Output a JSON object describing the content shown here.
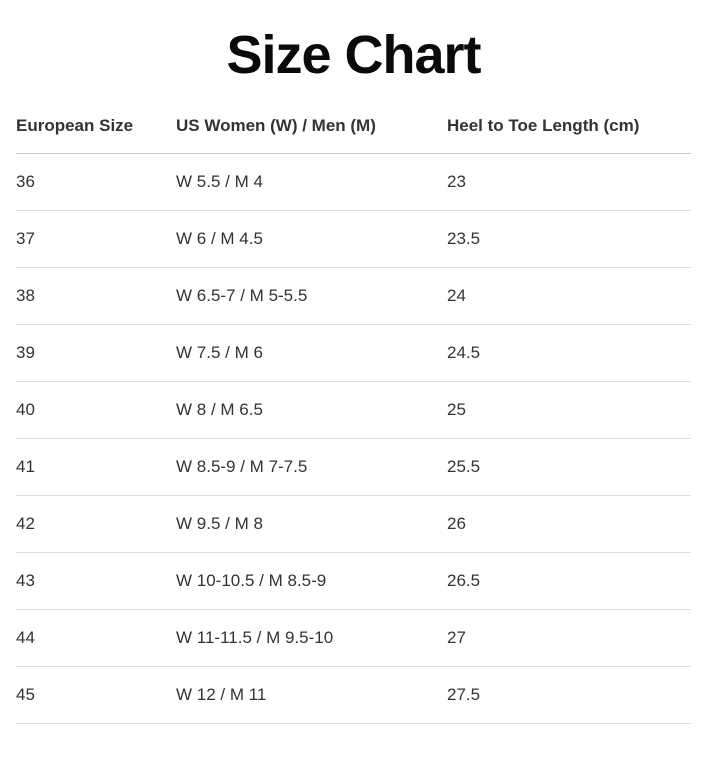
{
  "page": {
    "title": "Size Chart"
  },
  "table": {
    "columns": [
      "European Size",
      "US Women (W) / Men (M)",
      "Heel to Toe Length (cm)"
    ],
    "rows": [
      [
        "36",
        "W 5.5 / M 4",
        "23"
      ],
      [
        "37",
        "W 6 / M 4.5",
        "23.5"
      ],
      [
        "38",
        "W 6.5-7 / M 5-5.5",
        "24"
      ],
      [
        "39",
        "W 7.5 / M 6",
        "24.5"
      ],
      [
        "40",
        "W 8 / M 6.5",
        "25"
      ],
      [
        "41",
        "W 8.5-9 / M 7-7.5",
        "25.5"
      ],
      [
        "42",
        "W 9.5 / M 8",
        "26"
      ],
      [
        "43",
        "W 10-10.5 / M 8.5-9",
        "26.5"
      ],
      [
        "44",
        "W 11-11.5 / M 9.5-10",
        "27"
      ],
      [
        "45",
        "W 12 / M 11",
        "27.5"
      ]
    ]
  },
  "chart_data": {
    "type": "table",
    "title": "Size Chart",
    "columns": [
      "European Size",
      "US Women (W) / Men (M)",
      "Heel to Toe Length (cm)"
    ],
    "rows": [
      {
        "european_size": "36",
        "us_size": "W 5.5 / M 4",
        "heel_to_toe_cm": "23"
      },
      {
        "european_size": "37",
        "us_size": "W 6 / M 4.5",
        "heel_to_toe_cm": "23.5"
      },
      {
        "european_size": "38",
        "us_size": "W 6.5-7 / M 5-5.5",
        "heel_to_toe_cm": "24"
      },
      {
        "european_size": "39",
        "us_size": "W 7.5 / M 6",
        "heel_to_toe_cm": "24.5"
      },
      {
        "european_size": "40",
        "us_size": "W 8 / M 6.5",
        "heel_to_toe_cm": "25"
      },
      {
        "european_size": "41",
        "us_size": "W 8.5-9 / M 7-7.5",
        "heel_to_toe_cm": "25.5"
      },
      {
        "european_size": "42",
        "us_size": "W 9.5 / M 8",
        "heel_to_toe_cm": "26"
      },
      {
        "european_size": "43",
        "us_size": "W 10-10.5 / M 8.5-9",
        "heel_to_toe_cm": "26.5"
      },
      {
        "european_size": "44",
        "us_size": "W 11-11.5 / M 9.5-10",
        "heel_to_toe_cm": "27"
      },
      {
        "european_size": "45",
        "us_size": "W 12 / M 11",
        "heel_to_toe_cm": "27.5"
      }
    ]
  },
  "colors": {
    "background": "#ffffff",
    "title_text": "#0a0a0a",
    "body_text": "#333333",
    "header_divider": "#cccccc",
    "row_divider": "#e0e0e0"
  }
}
